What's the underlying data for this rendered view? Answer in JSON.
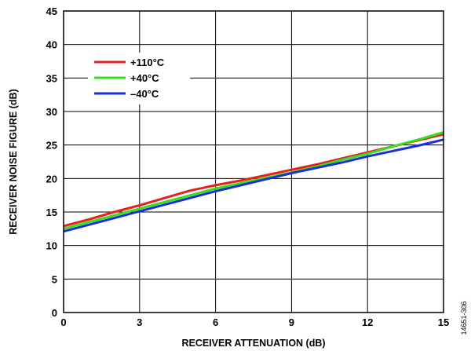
{
  "chart_data": {
    "type": "line",
    "xlabel": "RECEIVER ATTENUATION (dB)",
    "ylabel": "RECEIVER NOISE FIGURE (dB)",
    "xlim": [
      0,
      15
    ],
    "ylim": [
      0,
      45
    ],
    "xticks": [
      "0",
      "3",
      "6",
      "9",
      "12",
      "15"
    ],
    "yticks": [
      "0",
      "5",
      "10",
      "15",
      "20",
      "25",
      "30",
      "35",
      "40",
      "45"
    ],
    "grid": true,
    "legend_position": "top-left",
    "x": [
      0,
      1,
      2,
      3,
      4,
      5,
      6,
      7,
      8,
      9,
      10,
      11,
      12,
      13,
      14,
      15
    ],
    "series": [
      {
        "name": "+110°C",
        "color": "#e8201c",
        "values": [
          12.9,
          13.9,
          15.0,
          16.0,
          17.1,
          18.2,
          19.0,
          19.7,
          20.5,
          21.3,
          22.1,
          23.0,
          23.9,
          24.8,
          25.7,
          26.6
        ]
      },
      {
        "name": "+40°C",
        "color": "#33e01a",
        "values": [
          12.5,
          13.5,
          14.5,
          15.5,
          16.5,
          17.5,
          18.5,
          19.3,
          20.1,
          20.9,
          21.8,
          22.8,
          23.7,
          24.8,
          25.8,
          26.9
        ]
      },
      {
        "name": "–40°C",
        "color": "#1a2fd8",
        "values": [
          12.1,
          13.1,
          14.1,
          15.1,
          16.1,
          17.1,
          18.1,
          19.0,
          19.9,
          20.8,
          21.6,
          22.4,
          23.3,
          24.1,
          24.9,
          25.8
        ]
      }
    ],
    "annotation": "14651-306"
  }
}
